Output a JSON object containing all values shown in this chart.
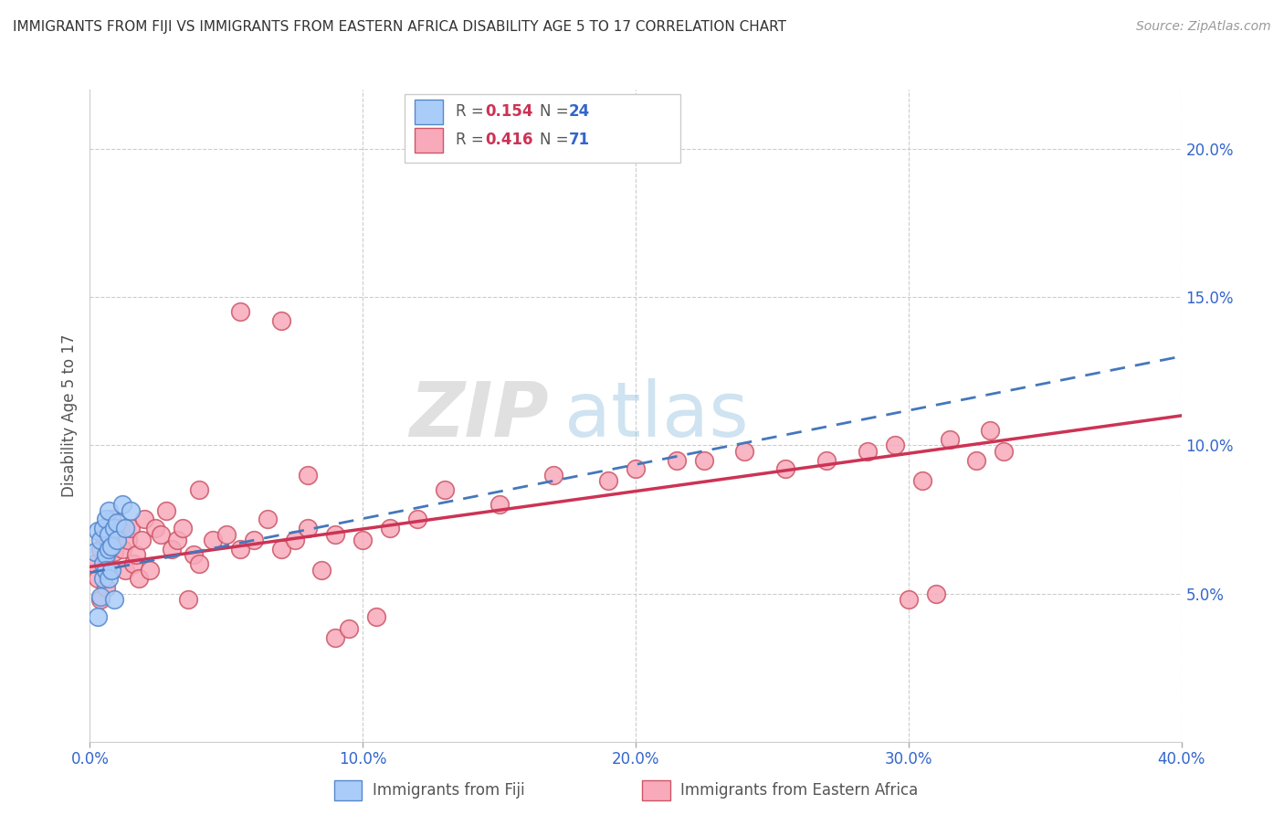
{
  "title": "IMMIGRANTS FROM FIJI VS IMMIGRANTS FROM EASTERN AFRICA DISABILITY AGE 5 TO 17 CORRELATION CHART",
  "source": "Source: ZipAtlas.com",
  "ylabel": "Disability Age 5 to 17",
  "xlim": [
    0.0,
    0.4
  ],
  "ylim": [
    0.0,
    0.22
  ],
  "xticks": [
    0.0,
    0.1,
    0.2,
    0.3,
    0.4
  ],
  "yticks": [
    0.05,
    0.1,
    0.15,
    0.2
  ],
  "xticklabels": [
    "0.0%",
    "10.0%",
    "20.0%",
    "30.0%",
    "40.0%"
  ],
  "yticklabels": [
    "5.0%",
    "10.0%",
    "15.0%",
    "20.0%"
  ],
  "fiji_color": "#aaccf8",
  "eastern_africa_color": "#f8aabb",
  "fiji_edge_color": "#5588cc",
  "eastern_africa_edge_color": "#cc5566",
  "fiji_line_color": "#4477bb",
  "eastern_africa_line_color": "#cc3355",
  "legend_R_color": "#cc3355",
  "legend_N_color": "#3366cc",
  "legend_fiji_R": "0.154",
  "legend_fiji_N": "24",
  "legend_ea_R": "0.416",
  "legend_ea_N": "71",
  "fiji_x": [
    0.002,
    0.003,
    0.003,
    0.004,
    0.004,
    0.005,
    0.005,
    0.005,
    0.006,
    0.006,
    0.006,
    0.007,
    0.007,
    0.007,
    0.007,
    0.008,
    0.008,
    0.009,
    0.009,
    0.01,
    0.01,
    0.012,
    0.013,
    0.015
  ],
  "fiji_y": [
    0.064,
    0.071,
    0.042,
    0.068,
    0.049,
    0.072,
    0.06,
    0.055,
    0.075,
    0.063,
    0.058,
    0.078,
    0.07,
    0.065,
    0.055,
    0.066,
    0.058,
    0.072,
    0.048,
    0.074,
    0.068,
    0.08,
    0.072,
    0.078
  ],
  "ea_x": [
    0.002,
    0.003,
    0.004,
    0.004,
    0.005,
    0.006,
    0.006,
    0.007,
    0.008,
    0.008,
    0.009,
    0.01,
    0.011,
    0.012,
    0.013,
    0.014,
    0.015,
    0.016,
    0.017,
    0.018,
    0.019,
    0.02,
    0.022,
    0.024,
    0.026,
    0.028,
    0.03,
    0.032,
    0.034,
    0.036,
    0.038,
    0.04,
    0.045,
    0.05,
    0.055,
    0.06,
    0.065,
    0.07,
    0.075,
    0.08,
    0.085,
    0.09,
    0.1,
    0.11,
    0.12,
    0.13,
    0.15,
    0.17,
    0.19,
    0.2,
    0.215,
    0.225,
    0.24,
    0.255,
    0.27,
    0.285,
    0.295,
    0.305,
    0.315,
    0.325,
    0.33,
    0.335,
    0.3,
    0.31,
    0.04,
    0.055,
    0.07,
    0.08,
    0.09,
    0.095,
    0.105
  ],
  "ea_y": [
    0.06,
    0.055,
    0.065,
    0.048,
    0.07,
    0.062,
    0.052,
    0.068,
    0.058,
    0.075,
    0.064,
    0.07,
    0.072,
    0.065,
    0.058,
    0.068,
    0.072,
    0.06,
    0.063,
    0.055,
    0.068,
    0.075,
    0.058,
    0.072,
    0.07,
    0.078,
    0.065,
    0.068,
    0.072,
    0.048,
    0.063,
    0.06,
    0.068,
    0.07,
    0.065,
    0.068,
    0.075,
    0.065,
    0.068,
    0.072,
    0.058,
    0.07,
    0.068,
    0.072,
    0.075,
    0.085,
    0.08,
    0.09,
    0.088,
    0.092,
    0.095,
    0.095,
    0.098,
    0.092,
    0.095,
    0.098,
    0.1,
    0.088,
    0.102,
    0.095,
    0.105,
    0.098,
    0.048,
    0.05,
    0.085,
    0.145,
    0.142,
    0.09,
    0.035,
    0.038,
    0.042
  ]
}
